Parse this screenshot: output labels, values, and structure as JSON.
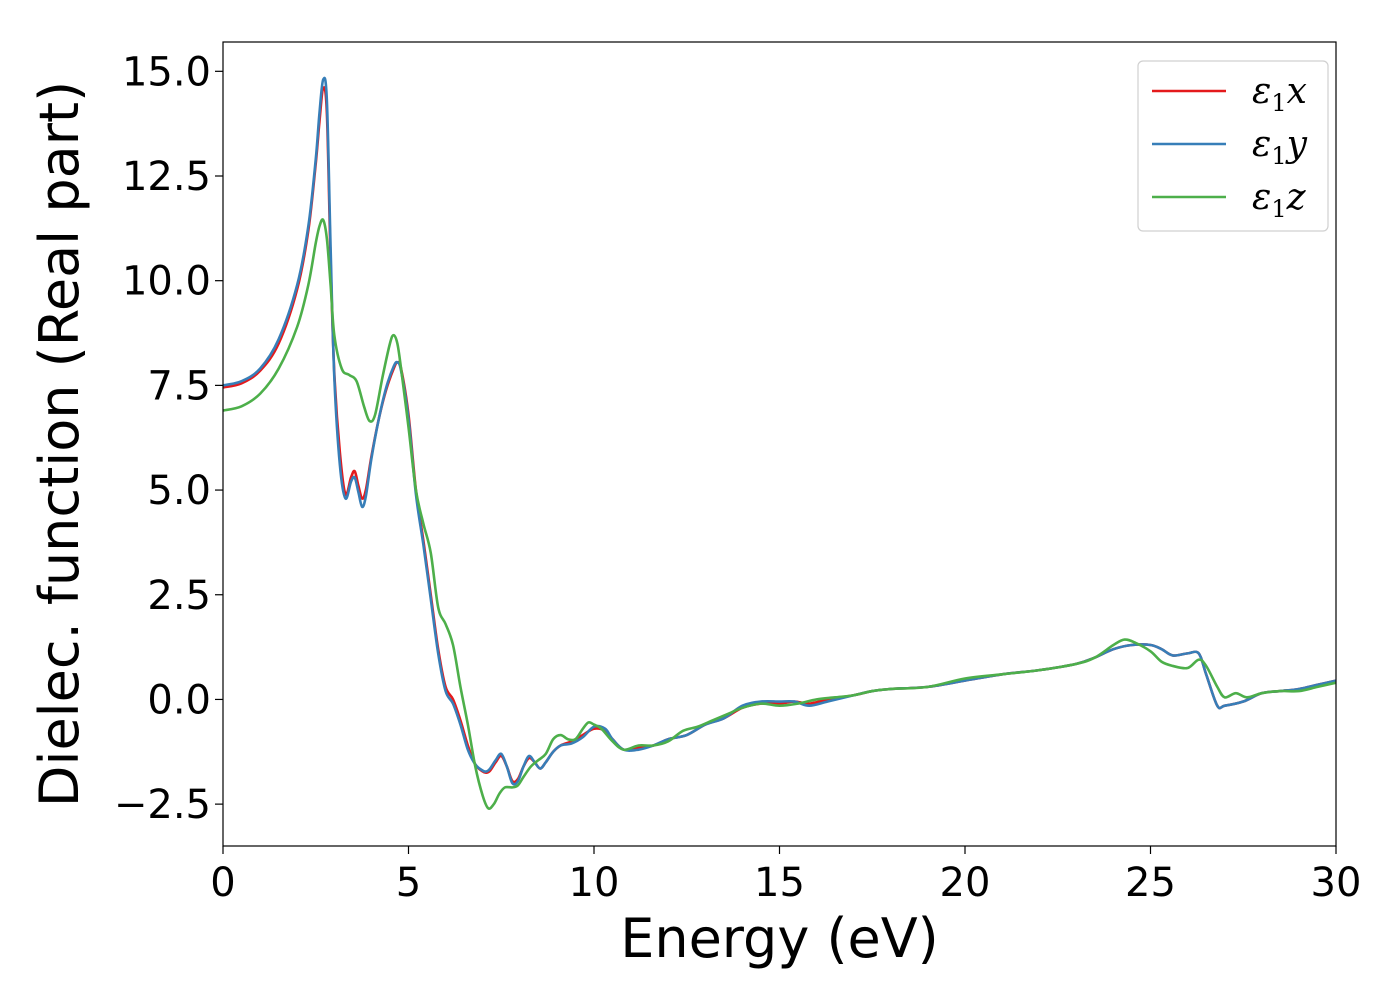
{
  "chart_data": {
    "type": "line",
    "title": "",
    "xlabel": "Energy (eV)",
    "ylabel": "Dielec. function (Real part)",
    "xlim": [
      0,
      30
    ],
    "ylim": [
      -3.5,
      15.7
    ],
    "xticks": [
      0,
      5,
      10,
      15,
      20,
      25,
      30
    ],
    "xtick_labels": [
      "0",
      "5",
      "10",
      "15",
      "20",
      "25",
      "30"
    ],
    "yticks": [
      -2.5,
      0,
      2.5,
      5,
      7.5,
      10,
      12.5,
      15
    ],
    "ytick_labels": [
      "−2.5",
      "0.0",
      "2.5",
      "5.0",
      "7.5",
      "10.0",
      "12.5",
      "15.0"
    ],
    "grid": false,
    "legend_position": "top-right",
    "series": [
      {
        "name": "ε₁x",
        "legend_base": "ε",
        "legend_sub": "1",
        "legend_tail": "x",
        "color": "#e41a1c",
        "points": [
          [
            0,
            7.45
          ],
          [
            0.5,
            7.55
          ],
          [
            1.0,
            7.85
          ],
          [
            1.5,
            8.5
          ],
          [
            2.0,
            9.8
          ],
          [
            2.3,
            11.2
          ],
          [
            2.5,
            12.8
          ],
          [
            2.6,
            13.8
          ],
          [
            2.7,
            14.6
          ],
          [
            2.8,
            14.0
          ],
          [
            2.9,
            10.5
          ],
          [
            3.0,
            7.8
          ],
          [
            3.15,
            5.9
          ],
          [
            3.3,
            4.9
          ],
          [
            3.45,
            5.3
          ],
          [
            3.55,
            5.45
          ],
          [
            3.65,
            5.1
          ],
          [
            3.75,
            4.8
          ],
          [
            3.85,
            5.0
          ],
          [
            4.0,
            5.8
          ],
          [
            4.2,
            6.7
          ],
          [
            4.4,
            7.4
          ],
          [
            4.6,
            7.9
          ],
          [
            4.7,
            8.05
          ],
          [
            4.8,
            7.9
          ],
          [
            5.0,
            6.8
          ],
          [
            5.2,
            5.0
          ],
          [
            5.4,
            3.8
          ],
          [
            5.6,
            2.5
          ],
          [
            5.8,
            1.2
          ],
          [
            6.0,
            0.3
          ],
          [
            6.2,
            0.0
          ],
          [
            6.4,
            -0.5
          ],
          [
            6.6,
            -1.1
          ],
          [
            6.8,
            -1.55
          ],
          [
            7.0,
            -1.72
          ],
          [
            7.1,
            -1.75
          ],
          [
            7.2,
            -1.7
          ],
          [
            7.35,
            -1.5
          ],
          [
            7.5,
            -1.35
          ],
          [
            7.65,
            -1.6
          ],
          [
            7.8,
            -1.95
          ],
          [
            7.95,
            -1.9
          ],
          [
            8.1,
            -1.6
          ],
          [
            8.25,
            -1.4
          ],
          [
            8.4,
            -1.5
          ],
          [
            8.55,
            -1.65
          ],
          [
            8.7,
            -1.5
          ],
          [
            8.9,
            -1.25
          ],
          [
            9.1,
            -1.1
          ],
          [
            9.4,
            -1.0
          ],
          [
            9.7,
            -0.85
          ],
          [
            10.0,
            -0.7
          ],
          [
            10.3,
            -0.75
          ],
          [
            10.5,
            -0.95
          ],
          [
            10.8,
            -1.2
          ],
          [
            11.2,
            -1.15
          ],
          [
            11.6,
            -1.1
          ],
          [
            12.0,
            -0.95
          ],
          [
            12.5,
            -0.85
          ],
          [
            13.0,
            -0.6
          ],
          [
            13.5,
            -0.45
          ],
          [
            14.0,
            -0.2
          ],
          [
            14.5,
            -0.1
          ],
          [
            15.0,
            -0.1
          ],
          [
            15.4,
            -0.05
          ],
          [
            15.8,
            -0.1
          ],
          [
            16.3,
            0.0
          ],
          [
            17.0,
            0.1
          ],
          [
            17.5,
            0.2
          ],
          [
            18.0,
            0.25
          ],
          [
            19.0,
            0.3
          ],
          [
            20.0,
            0.45
          ],
          [
            21.0,
            0.6
          ],
          [
            22.0,
            0.7
          ],
          [
            23.0,
            0.85
          ],
          [
            23.5,
            1.0
          ],
          [
            24.0,
            1.2
          ],
          [
            24.5,
            1.3
          ],
          [
            25.0,
            1.3
          ],
          [
            25.3,
            1.2
          ],
          [
            25.6,
            1.05
          ],
          [
            26.0,
            1.1
          ],
          [
            26.3,
            1.1
          ],
          [
            26.5,
            0.6
          ],
          [
            26.8,
            -0.15
          ],
          [
            27.0,
            -0.15
          ],
          [
            27.5,
            -0.05
          ],
          [
            28.0,
            0.15
          ],
          [
            28.5,
            0.2
          ],
          [
            29.0,
            0.25
          ],
          [
            29.5,
            0.35
          ],
          [
            30.0,
            0.45
          ]
        ]
      },
      {
        "name": "ε₁y",
        "legend_base": "ε",
        "legend_sub": "1",
        "legend_tail": "y",
        "color": "#377eb8",
        "points": [
          [
            0,
            7.5
          ],
          [
            0.5,
            7.6
          ],
          [
            1.0,
            7.9
          ],
          [
            1.5,
            8.6
          ],
          [
            2.0,
            9.9
          ],
          [
            2.3,
            11.3
          ],
          [
            2.5,
            12.9
          ],
          [
            2.6,
            14.0
          ],
          [
            2.7,
            14.8
          ],
          [
            2.8,
            14.3
          ],
          [
            2.9,
            10.8
          ],
          [
            3.0,
            7.7
          ],
          [
            3.15,
            5.6
          ],
          [
            3.3,
            4.8
          ],
          [
            3.45,
            5.2
          ],
          [
            3.55,
            5.3
          ],
          [
            3.65,
            4.95
          ],
          [
            3.75,
            4.6
          ],
          [
            3.85,
            4.85
          ],
          [
            4.0,
            5.75
          ],
          [
            4.2,
            6.7
          ],
          [
            4.4,
            7.45
          ],
          [
            4.6,
            7.95
          ],
          [
            4.7,
            8.05
          ],
          [
            4.8,
            7.85
          ],
          [
            5.0,
            6.7
          ],
          [
            5.2,
            4.9
          ],
          [
            5.4,
            3.7
          ],
          [
            5.6,
            2.4
          ],
          [
            5.8,
            1.1
          ],
          [
            6.0,
            0.2
          ],
          [
            6.2,
            -0.1
          ],
          [
            6.4,
            -0.6
          ],
          [
            6.6,
            -1.2
          ],
          [
            6.8,
            -1.55
          ],
          [
            7.0,
            -1.7
          ],
          [
            7.1,
            -1.72
          ],
          [
            7.2,
            -1.65
          ],
          [
            7.35,
            -1.45
          ],
          [
            7.5,
            -1.3
          ],
          [
            7.65,
            -1.6
          ],
          [
            7.8,
            -2.0
          ],
          [
            7.95,
            -1.95
          ],
          [
            8.1,
            -1.6
          ],
          [
            8.25,
            -1.35
          ],
          [
            8.4,
            -1.5
          ],
          [
            8.55,
            -1.65
          ],
          [
            8.7,
            -1.5
          ],
          [
            8.9,
            -1.25
          ],
          [
            9.1,
            -1.1
          ],
          [
            9.4,
            -1.05
          ],
          [
            9.7,
            -0.9
          ],
          [
            10.0,
            -0.65
          ],
          [
            10.3,
            -0.7
          ],
          [
            10.5,
            -0.95
          ],
          [
            10.8,
            -1.2
          ],
          [
            11.2,
            -1.2
          ],
          [
            11.6,
            -1.1
          ],
          [
            12.0,
            -0.95
          ],
          [
            12.5,
            -0.85
          ],
          [
            13.0,
            -0.6
          ],
          [
            13.5,
            -0.45
          ],
          [
            14.0,
            -0.15
          ],
          [
            14.5,
            -0.05
          ],
          [
            15.0,
            -0.05
          ],
          [
            15.4,
            -0.05
          ],
          [
            15.8,
            -0.15
          ],
          [
            16.3,
            -0.05
          ],
          [
            17.0,
            0.1
          ],
          [
            17.5,
            0.2
          ],
          [
            18.0,
            0.25
          ],
          [
            19.0,
            0.3
          ],
          [
            20.0,
            0.45
          ],
          [
            21.0,
            0.6
          ],
          [
            22.0,
            0.7
          ],
          [
            23.0,
            0.85
          ],
          [
            23.5,
            1.0
          ],
          [
            24.0,
            1.2
          ],
          [
            24.5,
            1.3
          ],
          [
            25.0,
            1.3
          ],
          [
            25.3,
            1.2
          ],
          [
            25.6,
            1.05
          ],
          [
            26.0,
            1.1
          ],
          [
            26.3,
            1.1
          ],
          [
            26.5,
            0.6
          ],
          [
            26.8,
            -0.15
          ],
          [
            27.0,
            -0.15
          ],
          [
            27.5,
            -0.05
          ],
          [
            28.0,
            0.15
          ],
          [
            28.5,
            0.2
          ],
          [
            29.0,
            0.25
          ],
          [
            29.5,
            0.35
          ],
          [
            30.0,
            0.45
          ]
        ]
      },
      {
        "name": "ε₁z",
        "legend_base": "ε",
        "legend_sub": "1",
        "legend_tail": "z",
        "color": "#4daf4a",
        "points": [
          [
            0,
            6.9
          ],
          [
            0.5,
            7.0
          ],
          [
            1.0,
            7.3
          ],
          [
            1.5,
            7.9
          ],
          [
            2.0,
            8.9
          ],
          [
            2.3,
            9.9
          ],
          [
            2.5,
            10.9
          ],
          [
            2.6,
            11.3
          ],
          [
            2.7,
            11.45
          ],
          [
            2.8,
            11.0
          ],
          [
            2.9,
            9.9
          ],
          [
            3.0,
            8.7
          ],
          [
            3.2,
            7.9
          ],
          [
            3.4,
            7.75
          ],
          [
            3.6,
            7.6
          ],
          [
            3.8,
            7.0
          ],
          [
            3.95,
            6.65
          ],
          [
            4.1,
            6.8
          ],
          [
            4.3,
            7.7
          ],
          [
            4.5,
            8.5
          ],
          [
            4.6,
            8.7
          ],
          [
            4.7,
            8.5
          ],
          [
            4.8,
            7.9
          ],
          [
            5.0,
            6.5
          ],
          [
            5.2,
            5.0
          ],
          [
            5.4,
            4.2
          ],
          [
            5.6,
            3.5
          ],
          [
            5.8,
            2.2
          ],
          [
            6.0,
            1.8
          ],
          [
            6.2,
            1.3
          ],
          [
            6.4,
            0.3
          ],
          [
            6.6,
            -0.6
          ],
          [
            6.8,
            -1.6
          ],
          [
            7.0,
            -2.3
          ],
          [
            7.15,
            -2.6
          ],
          [
            7.3,
            -2.5
          ],
          [
            7.45,
            -2.25
          ],
          [
            7.6,
            -2.1
          ],
          [
            7.8,
            -2.1
          ],
          [
            7.95,
            -2.05
          ],
          [
            8.1,
            -1.85
          ],
          [
            8.3,
            -1.6
          ],
          [
            8.5,
            -1.45
          ],
          [
            8.7,
            -1.3
          ],
          [
            8.9,
            -0.95
          ],
          [
            9.1,
            -0.85
          ],
          [
            9.3,
            -0.95
          ],
          [
            9.5,
            -0.95
          ],
          [
            9.7,
            -0.7
          ],
          [
            9.85,
            -0.55
          ],
          [
            10.0,
            -0.6
          ],
          [
            10.2,
            -0.7
          ],
          [
            10.5,
            -1.0
          ],
          [
            10.8,
            -1.2
          ],
          [
            11.2,
            -1.1
          ],
          [
            11.6,
            -1.1
          ],
          [
            12.0,
            -1.0
          ],
          [
            12.4,
            -0.75
          ],
          [
            12.8,
            -0.65
          ],
          [
            13.2,
            -0.5
          ],
          [
            13.6,
            -0.35
          ],
          [
            14.0,
            -0.2
          ],
          [
            14.5,
            -0.1
          ],
          [
            15.0,
            -0.15
          ],
          [
            15.5,
            -0.1
          ],
          [
            16.0,
            0.0
          ],
          [
            16.5,
            0.05
          ],
          [
            17.0,
            0.1
          ],
          [
            17.5,
            0.2
          ],
          [
            18.0,
            0.25
          ],
          [
            19.0,
            0.3
          ],
          [
            20.0,
            0.5
          ],
          [
            21.0,
            0.6
          ],
          [
            22.0,
            0.7
          ],
          [
            23.0,
            0.85
          ],
          [
            23.5,
            1.0
          ],
          [
            24.0,
            1.3
          ],
          [
            24.3,
            1.43
          ],
          [
            24.6,
            1.35
          ],
          [
            25.0,
            1.15
          ],
          [
            25.3,
            0.9
          ],
          [
            25.6,
            0.8
          ],
          [
            26.0,
            0.75
          ],
          [
            26.3,
            0.95
          ],
          [
            26.5,
            0.8
          ],
          [
            26.8,
            0.3
          ],
          [
            27.0,
            0.05
          ],
          [
            27.3,
            0.15
          ],
          [
            27.6,
            0.05
          ],
          [
            28.0,
            0.15
          ],
          [
            28.5,
            0.2
          ],
          [
            29.0,
            0.2
          ],
          [
            29.5,
            0.3
          ],
          [
            30.0,
            0.4
          ]
        ]
      }
    ]
  }
}
